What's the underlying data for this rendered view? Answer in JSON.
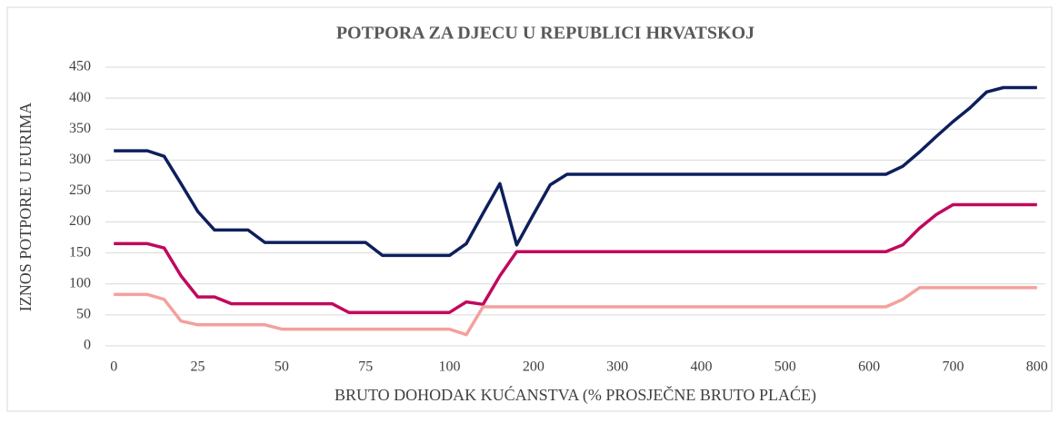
{
  "chart_data": {
    "type": "line",
    "title": "POTPORA ZA DJECU U REPUBLICI HRVATSKOJ",
    "x_label": "BRUTO DOHODAK KUĆANSTVA (% PROSJEČNE BRUTO PLAĆE)",
    "y_label": "IZNOS POTPORE U EURIMA",
    "categories": [
      0,
      null,
      null,
      null,
      null,
      25,
      null,
      null,
      null,
      null,
      50,
      null,
      null,
      null,
      null,
      75,
      null,
      null,
      null,
      null,
      100,
      null,
      null,
      null,
      null,
      200,
      null,
      null,
      null,
      null,
      300,
      null,
      null,
      null,
      null,
      400,
      null,
      null,
      null,
      null,
      500,
      null,
      null,
      null,
      null,
      600,
      null,
      null,
      null,
      null,
      700,
      null,
      null,
      null,
      null,
      800
    ],
    "series": [
      {
        "color": "#0d1f5c",
        "values": [
          315,
          315,
          315,
          306,
          262,
          217,
          187,
          187,
          187,
          167,
          167,
          167,
          167,
          167,
          167,
          167,
          146,
          146,
          146,
          146,
          146,
          165,
          214,
          262,
          163,
          212,
          260,
          277,
          277,
          277,
          277,
          277,
          277,
          277,
          277,
          277,
          277,
          277,
          277,
          277,
          277,
          277,
          277,
          277,
          277,
          277,
          277,
          290,
          313,
          338,
          362,
          384,
          410,
          417,
          417,
          417
        ]
      },
      {
        "color": "#c0095e",
        "values": [
          165,
          165,
          165,
          158,
          113,
          79,
          79,
          68,
          68,
          68,
          68,
          68,
          68,
          68,
          54,
          54,
          54,
          54,
          54,
          54,
          54,
          71,
          67,
          113,
          152,
          152,
          152,
          152,
          152,
          152,
          152,
          152,
          152,
          152,
          152,
          152,
          152,
          152,
          152,
          152,
          152,
          152,
          152,
          152,
          152,
          152,
          152,
          163,
          190,
          212,
          228,
          228,
          228,
          228,
          228,
          228
        ]
      },
      {
        "color": "#f4a09c",
        "values": [
          83,
          83,
          83,
          75,
          40,
          34,
          34,
          34,
          34,
          34,
          27,
          27,
          27,
          27,
          27,
          27,
          27,
          27,
          27,
          27,
          27,
          18,
          63,
          63,
          63,
          63,
          63,
          63,
          63,
          63,
          63,
          63,
          63,
          63,
          63,
          63,
          63,
          63,
          63,
          63,
          63,
          63,
          63,
          63,
          63,
          63,
          63,
          75,
          94,
          94,
          94,
          94,
          94,
          94,
          94,
          94
        ]
      }
    ],
    "ylim": [
      0,
      450
    ],
    "yticks": [
      0,
      50,
      100,
      150,
      200,
      250,
      300,
      350,
      400,
      450
    ],
    "grid": true
  }
}
